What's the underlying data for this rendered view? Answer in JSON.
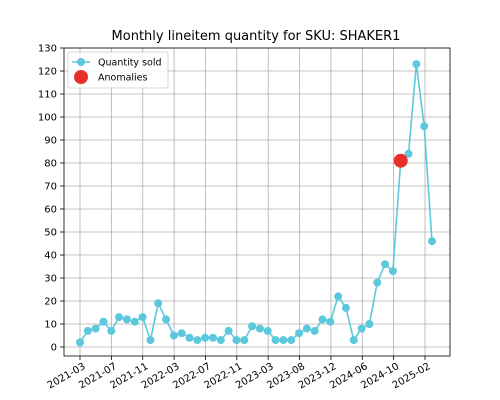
{
  "chart_data": {
    "type": "line",
    "title": "Monthly lineitem quantity for SKU: SHAKER1",
    "xlabel": "",
    "ylabel": "",
    "x_tick_labels": [
      "2021-03",
      "2021-07",
      "2021-11",
      "2022-03",
      "2022-07",
      "2022-11",
      "2023-03",
      "2023-08",
      "2023-12",
      "2024-06",
      "2024-10",
      "2025-02"
    ],
    "ylim": [
      0,
      130
    ],
    "y_ticks": [
      0,
      10,
      20,
      30,
      40,
      50,
      60,
      70,
      80,
      90,
      100,
      110,
      120,
      130
    ],
    "grid": true,
    "legend_position": "top-left",
    "series": [
      {
        "name": "Quantity sold",
        "color": "#5bc8dc",
        "marker": "circle",
        "values": [
          2,
          7,
          8,
          11,
          7,
          13,
          12,
          11,
          13,
          3,
          19,
          12,
          5,
          6,
          4,
          3,
          4,
          4,
          3,
          7,
          3,
          3,
          9,
          8,
          7,
          3,
          3,
          3,
          6,
          8,
          7,
          12,
          11,
          22,
          17,
          3,
          8,
          10,
          28,
          36,
          33,
          81,
          84,
          123,
          96,
          46
        ]
      },
      {
        "name": "Anomalies",
        "color": "#e8302b",
        "marker": "large-circle",
        "points": [
          {
            "index": 41,
            "value": 81
          }
        ]
      }
    ]
  }
}
